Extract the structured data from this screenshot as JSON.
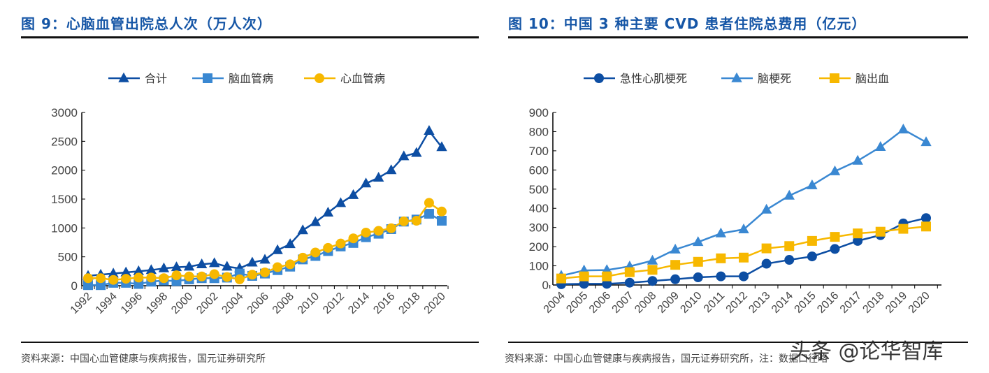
{
  "left": {
    "title": "图 9：心脑血管出院总人次（万人次）",
    "source": "资料来源：中国心血管健康与疾病报告，国元证券研究所"
  },
  "right": {
    "title": "图 10：中国 3 种主要 CVD 患者住院总费用（亿元）",
    "source": "资料来源：中国心血管健康与疾病报告，国元证券研究所，注：数据口径略"
  },
  "watermark": "头条 @论华智库",
  "colors": {
    "dark_blue": "#0d4ea3",
    "mid_blue": "#3a88d2",
    "yellow": "#f7b800",
    "title": "#1656a6"
  },
  "chart_data": [
    {
      "type": "line",
      "title": "",
      "x": [
        1992,
        1993,
        1994,
        1995,
        1996,
        1997,
        1998,
        1999,
        2000,
        2001,
        2002,
        2003,
        2004,
        2005,
        2006,
        2007,
        2008,
        2009,
        2010,
        2011,
        2012,
        2013,
        2014,
        2015,
        2016,
        2017,
        2018,
        2019,
        2020
      ],
      "tick_labels": [
        "1992",
        "1994",
        "1996",
        "1998",
        "2000",
        "2002",
        "2004",
        "2006",
        "2008",
        "2010",
        "2012",
        "2014",
        "2016",
        "2018",
        "2020"
      ],
      "ylim": [
        0,
        3000
      ],
      "yticks": [
        "0",
        "500",
        "1000",
        "1500",
        "2000",
        "2500",
        "3000"
      ],
      "legend": "top",
      "grid": false,
      "series": [
        {
          "name": "合计",
          "marker": "triangle",
          "color": "#0d4ea3",
          "values": [
            170,
            190,
            210,
            230,
            250,
            270,
            300,
            320,
            330,
            370,
            390,
            330,
            300,
            400,
            450,
            615,
            720,
            960,
            1100,
            1265,
            1430,
            1570,
            1770,
            1870,
            2000,
            2240,
            2300,
            2680,
            2400
          ]
        },
        {
          "name": "脑血管病",
          "marker": "square",
          "color": "#3a88d2",
          "values": [
            10,
            10,
            50,
            50,
            30,
            70,
            90,
            80,
            110,
            130,
            130,
            140,
            210,
            170,
            210,
            270,
            330,
            455,
            515,
            600,
            680,
            740,
            840,
            900,
            980,
            1110,
            1145,
            1245,
            1125
          ]
        },
        {
          "name": "心血管病",
          "marker": "circle",
          "color": "#f7b800",
          "values": [
            130,
            130,
            100,
            120,
            140,
            140,
            130,
            180,
            160,
            160,
            200,
            150,
            110,
            190,
            230,
            320,
            370,
            485,
            575,
            655,
            730,
            820,
            920,
            950,
            995,
            1115,
            1125,
            1435,
            1285
          ]
        }
      ]
    },
    {
      "type": "line",
      "title": "",
      "x": [
        2004,
        2005,
        2006,
        2007,
        2008,
        2009,
        2010,
        2011,
        2012,
        2013,
        2014,
        2015,
        2016,
        2017,
        2018,
        2019,
        2020
      ],
      "tick_labels": [
        "2004",
        "2005",
        "2006",
        "2007",
        "2008",
        "2009",
        "2010",
        "2011",
        "2012",
        "2013",
        "2014",
        "2015",
        "2016",
        "2017",
        "2018",
        "2019",
        "2020"
      ],
      "ylim": [
        0,
        900
      ],
      "yticks": [
        "0",
        "100",
        "200",
        "300",
        "400",
        "500",
        "600",
        "700",
        "800",
        "900"
      ],
      "legend": "top",
      "grid": false,
      "series": [
        {
          "name": "急性心肌梗死",
          "marker": "circle",
          "color": "#0d4ea3",
          "values": [
            4,
            6,
            6,
            12,
            21,
            30,
            40,
            45,
            45,
            111,
            131,
            149,
            188,
            230,
            260,
            321,
            349
          ]
        },
        {
          "name": "脑梗死",
          "marker": "triangle",
          "color": "#3a88d2",
          "values": [
            48,
            76,
            78,
            97,
            127,
            185,
            224,
            269,
            290,
            393,
            466,
            520,
            593,
            648,
            720,
            811,
            745
          ]
        },
        {
          "name": "脑出血",
          "marker": "square",
          "color": "#f7b800",
          "values": [
            34,
            45,
            45,
            67,
            79,
            105,
            121,
            139,
            143,
            191,
            203,
            230,
            251,
            269,
            278,
            293,
            305
          ]
        }
      ]
    }
  ]
}
